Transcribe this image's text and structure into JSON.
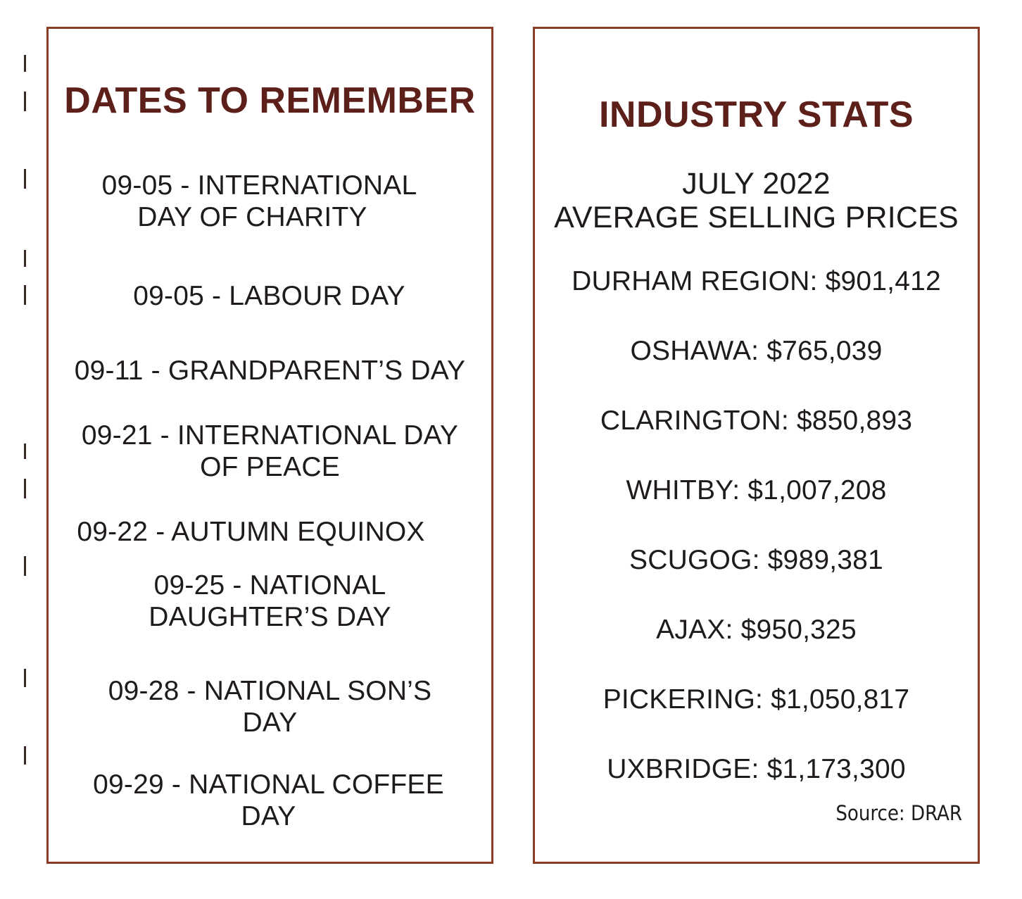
{
  "dates_panel": {
    "title": "DATES TO REMEMBER",
    "items": [
      {
        "line1": "09-05 - INTERNATIONAL",
        "line2": "DAY OF CHARITY"
      },
      {
        "line1": "09-05 - LABOUR DAY",
        "line2": ""
      },
      {
        "line1": "09-11 - GRANDPARENT’S DAY",
        "line2": ""
      },
      {
        "line1": "09-21 - INTERNATIONAL DAY",
        "line2": "OF PEACE"
      },
      {
        "line1": "09-22 - AUTUMN EQUINOX",
        "line2": ""
      },
      {
        "line1": "09-25 - NATIONAL",
        "line2": "DAUGHTER’S DAY"
      },
      {
        "line1": "09-28 - NATIONAL SON’S",
        "line2": "DAY"
      },
      {
        "line1": "09-29 - NATIONAL COFFEE",
        "line2": "DAY"
      }
    ]
  },
  "stats_panel": {
    "title": "INDUSTRY STATS",
    "subtitle_line1": "JULY 2022",
    "subtitle_line2": "AVERAGE SELLING PRICES",
    "items": [
      "DURHAM REGION: $901,412",
      "OSHAWA: $765,039",
      "CLARINGTON: $850,893",
      "WHITBY: $1,007,208",
      "SCUGOG: $989,381",
      "AJAX: $950,325",
      "PICKERING: $1,050,817",
      "UXBRIDGE: $1,173,300"
    ],
    "source": "Source: DRAR"
  },
  "colors": {
    "border": "#8b3a24",
    "heading": "#5c1f1a",
    "text": "#1e1b1a"
  }
}
